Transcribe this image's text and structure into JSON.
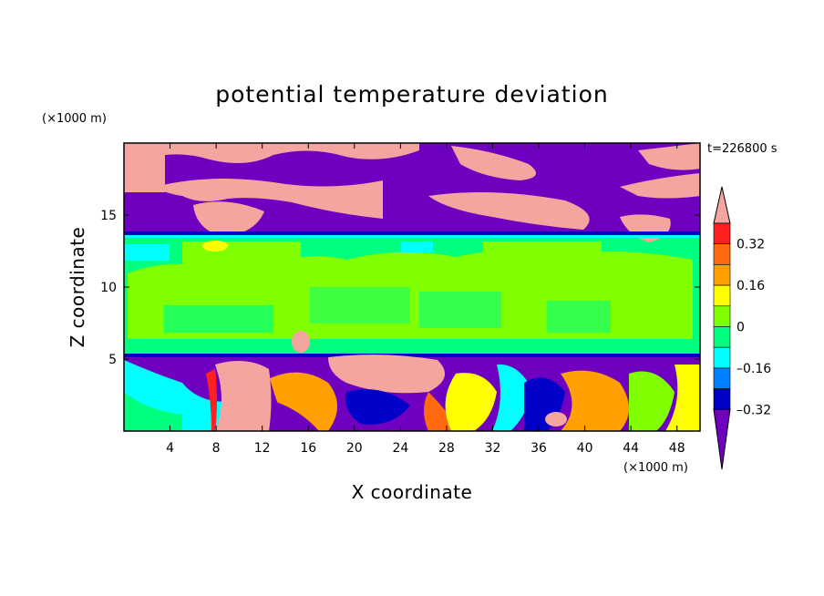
{
  "chart_data": {
    "type": "heatmap",
    "title": "potential temperature deviation",
    "xlabel": "X coordinate",
    "ylabel": "Z coordinate",
    "x_unit": "(×1000 m)",
    "y_unit": "(×1000 m)",
    "time_label": "t=226800 s",
    "xlim": [
      0,
      50
    ],
    "ylim": [
      0,
      20
    ],
    "x_ticks": [
      4,
      8,
      12,
      16,
      20,
      24,
      28,
      32,
      36,
      40,
      44,
      48
    ],
    "y_ticks": [
      5,
      10,
      15
    ],
    "colorbar": {
      "levels": [
        -0.4,
        -0.32,
        -0.24,
        -0.16,
        -0.08,
        0,
        0.08,
        0.16,
        0.24,
        0.32,
        0.4
      ],
      "label_values": [
        "0.32",
        "0.16",
        "0",
        "–0.16",
        "–0.32"
      ],
      "colors_top_to_bottom": [
        "#f4a5a0",
        "#ff2020",
        "#ff6a10",
        "#ffa000",
        "#ffff00",
        "#80ff00",
        "#00ff7f",
        "#00ffff",
        "#0080ff",
        "#0000c8",
        "#7000c0"
      ]
    },
    "layers": [
      {
        "z_range": [
          13.5,
          20
        ],
        "dominant_value": "< -0.4",
        "color": "#7000c0",
        "note": "purple stratosphere with pink (> 0.4) patches"
      },
      {
        "z_range": [
          16.5,
          20
        ],
        "dominant_value": "> 0.4",
        "color": "#f4a5a0"
      },
      {
        "z_range": [
          5.3,
          13.5
        ],
        "dominant_value": "0 to 0.08",
        "color": "#80ff00"
      },
      {
        "z_range": [
          11,
          13.5
        ],
        "dominant_value": "-0.08 to 0",
        "color": "#00ff7f"
      },
      {
        "z_range": [
          0,
          5.3
        ],
        "dominant_value": "mixed -0.4 to 0.4",
        "color": "mixed"
      }
    ]
  }
}
